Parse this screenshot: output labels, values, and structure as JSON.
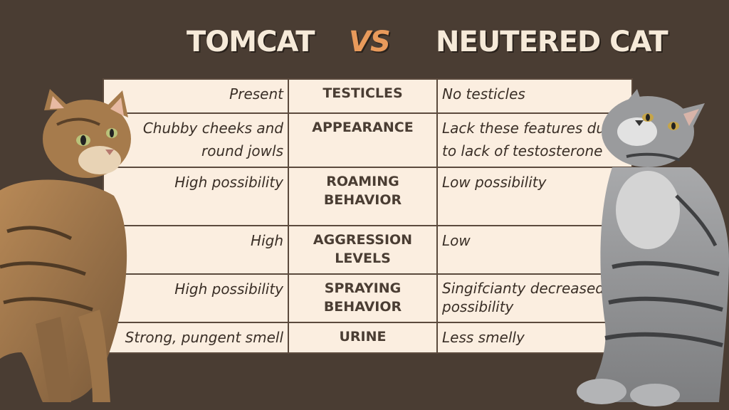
{
  "header": {
    "left": "TOMCAT",
    "vs": "VS",
    "right": "NEUTERED CAT"
  },
  "rows": [
    {
      "tomcat": "Present",
      "feature": "TESTICLES",
      "neutered": "No testicles"
    },
    {
      "tomcat": "Chubby cheeks and round jowls",
      "feature": "APPEARANCE",
      "neutered": "Lack these features due to lack of testosterone"
    },
    {
      "tomcat": "High possibility",
      "feature": "ROAMING BEHAVIOR",
      "neutered": "Low possibility"
    },
    {
      "tomcat": "High",
      "feature": "AGGRESSION LEVELS",
      "neutered": "Low"
    },
    {
      "tomcat": "High possibility",
      "feature": "SPRAYING BEHAVIOR",
      "neutered": "Singifcianty decreased possibility"
    },
    {
      "tomcat": "Strong, pungent smell",
      "feature": "URINE",
      "neutered": "Less smelly"
    }
  ],
  "colors": {
    "background": "#4a3d33",
    "table": "#fbeee0",
    "vs_accent": "#e89a5b"
  }
}
